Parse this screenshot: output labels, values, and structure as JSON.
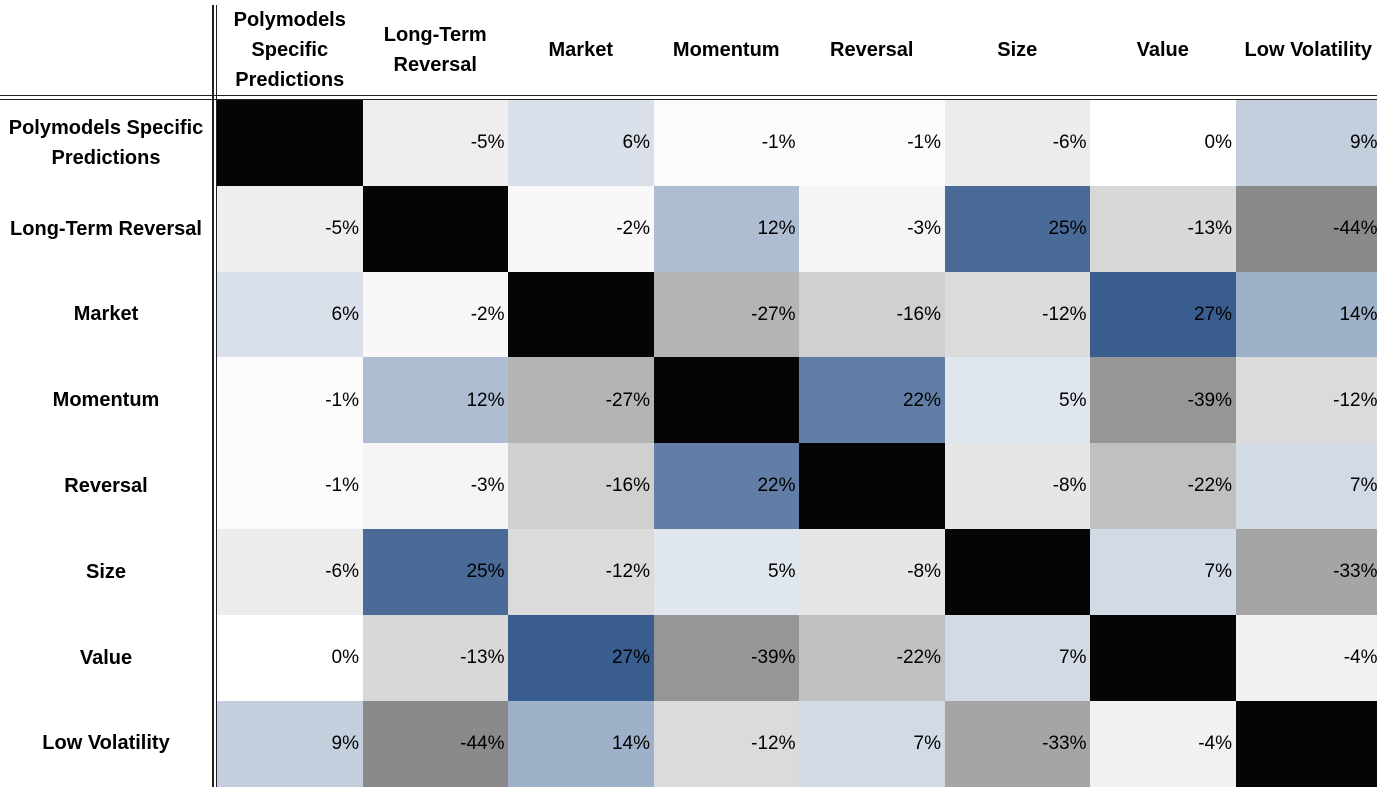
{
  "chart_data": {
    "type": "heatmap",
    "title": "",
    "categories": [
      "Polymodels Specific Predictions",
      "Long-Term Reversal",
      "Market",
      "Momentum",
      "Reversal",
      "Size",
      "Value",
      "Low Volatility"
    ],
    "col_headers": [
      [
        "Polymodels",
        "Specific",
        "Predictions"
      ],
      [
        "Long-Term",
        "Reversal"
      ],
      [
        "Market"
      ],
      [
        "Momentum"
      ],
      [
        "Reversal"
      ],
      [
        "Size"
      ],
      [
        "Value"
      ],
      [
        "Low Volatility"
      ]
    ],
    "row_headers": [
      [
        "Polymodels Specific",
        "Predictions"
      ],
      [
        "Long-Term Reversal"
      ],
      [
        "Market"
      ],
      [
        "Momentum"
      ],
      [
        "Reversal"
      ],
      [
        "Size"
      ],
      [
        "Value"
      ],
      [
        "Low Volatility"
      ]
    ],
    "values": [
      [
        null,
        -5,
        6,
        -1,
        -1,
        -6,
        0,
        9
      ],
      [
        -5,
        null,
        -2,
        12,
        -3,
        25,
        -13,
        -44
      ],
      [
        6,
        -2,
        null,
        -27,
        -16,
        -12,
        27,
        14
      ],
      [
        -1,
        12,
        -27,
        null,
        22,
        5,
        -39,
        -12
      ],
      [
        -1,
        -3,
        -16,
        22,
        null,
        -8,
        -22,
        7
      ],
      [
        -6,
        25,
        -12,
        5,
        -8,
        null,
        7,
        -33
      ],
      [
        0,
        -13,
        27,
        -39,
        -22,
        7,
        null,
        -4
      ],
      [
        9,
        -44,
        14,
        -12,
        7,
        -33,
        -4,
        null
      ]
    ],
    "value_suffix": "%",
    "diagonal_color": "#050505",
    "positive_color": "#3a5d8f",
    "negative_color": "#8a8a8a",
    "grid": false
  }
}
